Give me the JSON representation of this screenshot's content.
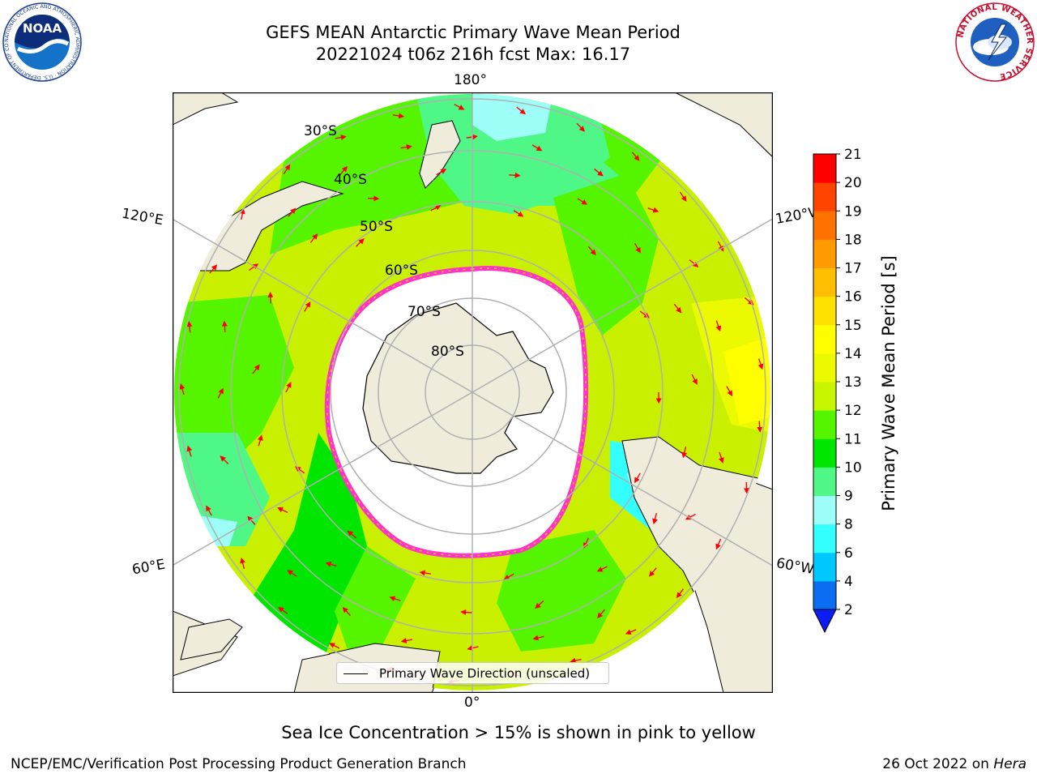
{
  "header": {
    "title_line1": "GEFS MEAN Antarctic Primary Wave Mean Period",
    "title_line2": "20221024 t06z 216h fcst   Max: 16.17"
  },
  "logos": {
    "noaa_text": "NOAA",
    "noaa_ring_text": "NATIONAL OCEANIC AND ATMOSPHERIC ADMINISTRATION · U.S. DEPARTMENT OF COMMERCE",
    "nws_ring_text": "NATIONAL WEATHER SERVICE"
  },
  "map": {
    "projection": "south-polar-stereographic",
    "longitude_labels": {
      "top": "180°",
      "bottom": "0°",
      "upper_left": "120°E",
      "upper_right": "120°W",
      "lower_left": "60°E",
      "lower_right": "60°W"
    },
    "latitude_labels": [
      "30°S",
      "40°S",
      "50°S",
      "60°S",
      "70°S",
      "80°S"
    ]
  },
  "colorbar": {
    "label": "Primary Wave Mean Period [s]",
    "ticks": [
      "2",
      "4",
      "6",
      "8",
      "9",
      "10",
      "11",
      "12",
      "13",
      "14",
      "15",
      "16",
      "17",
      "18",
      "19",
      "20",
      "21"
    ],
    "colors": [
      "#0a6df2",
      "#00c8ff",
      "#33ffff",
      "#9dfff7",
      "#4ff787",
      "#00e600",
      "#55f500",
      "#c7f500",
      "#ebfa00",
      "#ffff00",
      "#ffe100",
      "#ffbf00",
      "#ff9b00",
      "#ff7200",
      "#ff4400",
      "#ff0000"
    ],
    "extend_color": "#0b1cf5"
  },
  "legend": {
    "label": "Primary Wave Direction (unscaled)"
  },
  "note": "Sea Ice Concentration > 15% is shown in pink to yellow",
  "footer": {
    "left": "NCEP/EMC/Verification Post Processing Product Generation Branch",
    "date": "26 Oct 2022 on",
    "machine": "Hera"
  },
  "colors": {
    "land": "#efecdc",
    "ocean_fill": "#c8f000",
    "ice_edge": "#ff33cc",
    "arrow": "#ff0000",
    "grid": "#b0b0b0"
  }
}
